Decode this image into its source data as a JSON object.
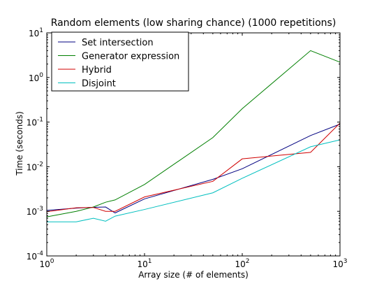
{
  "chart_data": {
    "type": "line",
    "title": "Random elements (low sharing chance) (1000 repetitions)",
    "xlabel": "Array size (# of elements)",
    "ylabel": "Time (seconds)",
    "xscale": "log",
    "yscale": "log",
    "xlim": [
      1,
      1000
    ],
    "ylim": [
      0.0001,
      10
    ],
    "grid": false,
    "legend_position": "top-left",
    "x_tick_values": [
      1,
      10,
      100,
      1000
    ],
    "x_tick_bases": [
      "10",
      "10",
      "10",
      "10"
    ],
    "x_tick_exps": [
      "0",
      "1",
      "2",
      "3"
    ],
    "y_tick_values": [
      0.0001,
      0.001,
      0.01,
      0.1,
      1,
      10
    ],
    "y_tick_bases": [
      "10",
      "10",
      "10",
      "10",
      "10",
      "10"
    ],
    "y_tick_exps": [
      "-4",
      "-3",
      "-2",
      "-1",
      "0",
      "1"
    ],
    "series": [
      {
        "name": "Set intersection",
        "color": "#000080",
        "x": [
          1,
          2,
          3,
          4,
          5,
          10,
          50,
          100,
          500,
          1000
        ],
        "y": [
          0.00105,
          0.00118,
          0.00123,
          0.00125,
          0.00092,
          0.0019,
          0.0052,
          0.009,
          0.05,
          0.09
        ]
      },
      {
        "name": "Generator expression",
        "color": "#007F00",
        "x": [
          1,
          2,
          3,
          4,
          5,
          10,
          50,
          100,
          500,
          1000
        ],
        "y": [
          0.00075,
          0.001,
          0.00125,
          0.0016,
          0.0018,
          0.004,
          0.045,
          0.2,
          4.0,
          2.2
        ]
      },
      {
        "name": "Hybrid",
        "color": "#D00000",
        "x": [
          1,
          2,
          3,
          4,
          5,
          10,
          50,
          100,
          500,
          1000
        ],
        "y": [
          0.00098,
          0.0012,
          0.00122,
          0.001,
          0.001,
          0.0021,
          0.0047,
          0.015,
          0.021,
          0.095
        ]
      },
      {
        "name": "Disjoint",
        "color": "#00BFBF",
        "x": [
          1,
          2,
          3,
          4,
          5,
          10,
          50,
          100,
          500,
          1000
        ],
        "y": [
          0.00058,
          0.00058,
          0.0007,
          0.0006,
          0.00078,
          0.0011,
          0.0026,
          0.0055,
          0.028,
          0.04
        ]
      }
    ]
  }
}
